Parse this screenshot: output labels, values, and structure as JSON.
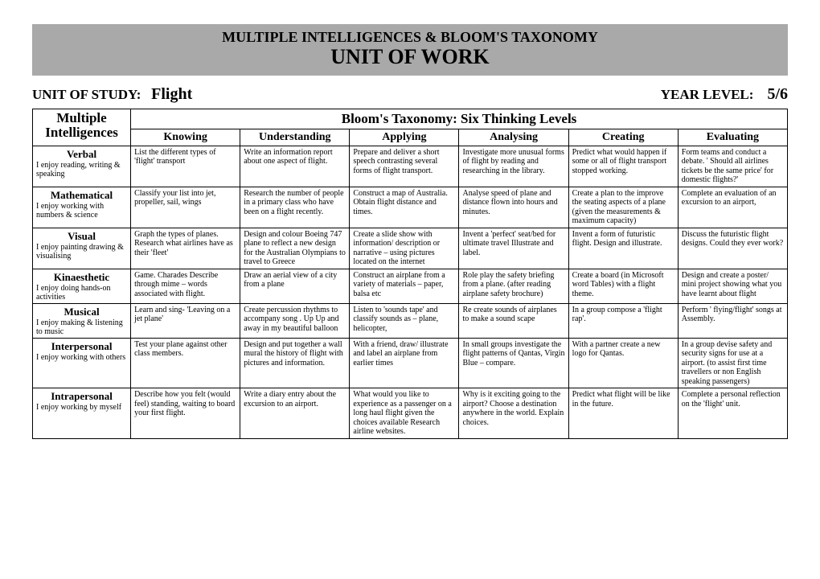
{
  "banner": {
    "subtitle": "MULTIPLE INTELLIGENCES & BLOOM'S TAXONOMY",
    "title": "UNIT OF WORK"
  },
  "meta": {
    "study_label": "UNIT OF STUDY:",
    "study_value": "Flight",
    "year_label": "YEAR LEVEL:",
    "year_value": "5/6"
  },
  "headers": {
    "mi": "Multiple Intelligences",
    "bloom": "Bloom's Taxonomy: Six Thinking Levels",
    "levels": [
      "Knowing",
      "Understanding",
      "Applying",
      "Analysing",
      "Creating",
      "Evaluating"
    ]
  },
  "rows": [
    {
      "name": "Verbal",
      "desc": "I enjoy reading, writing & speaking",
      "cells": [
        "List the different types of 'flight' transport",
        "Write an information report about one aspect of flight.",
        "Prepare and deliver a short speech contrasting several forms of flight transport.",
        "Investigate more unusual forms of flight by reading and researching in the library.",
        "Predict what would happen if some or all of flight transport stopped working.",
        "Form teams and conduct a debate. ' Should all airlines tickets be the same price' for domestic flights?'"
      ]
    },
    {
      "name": "Mathematical",
      "desc": "I enjoy working with numbers & science",
      "cells": [
        "Classify your list into jet, propeller, sail, wings",
        "Research the number of people in a primary class who have been on a flight recently.",
        "Construct a map of Australia. Obtain flight distance and times.",
        "Analyse speed of plane and distance flown into hours and minutes.",
        "Create a plan to the improve the seating aspects of a plane (given the measurements & maximum capacity)",
        "Complete an evaluation of an excursion to an airport,"
      ]
    },
    {
      "name": "Visual",
      "desc": "I enjoy painting  drawing & visualising",
      "cells": [
        "Graph the types of planes. Research what airlines have as their 'fleet'",
        "Design and colour Boeing 747 plane to reflect a new design for the Australian Olympians to travel to Greece",
        "Create a slide show with information/ description or narrative – using pictures located on the internet",
        "Invent a 'perfect' seat/bed for ultimate travel Illustrate and label.",
        "Invent a form of futuristic flight.\nDesign and illustrate.",
        "Discuss the futuristic flight designs. Could they ever work?"
      ]
    },
    {
      "name": "Kinaesthetic",
      "desc": "I enjoy doing hands-on activities",
      "cells": [
        "Game. Charades Describe through mime – words associated with flight.",
        "Draw an aerial view of a city from a plane",
        "Construct an airplane from a variety of materials – paper, balsa etc",
        "Role play the safety briefing from a plane. (after reading airplane safety brochure)",
        "Create a board (in Microsoft word Tables) with a flight theme.",
        "Design and create a poster/ mini project showing what you have learnt about flight"
      ]
    },
    {
      "name": "Musical",
      "desc": "I enjoy making & listening to music",
      "cells": [
        "Learn and sing- 'Leaving on a jet plane'",
        "Create percussion rhythms to accompany song . Up Up and away in my beautiful balloon",
        "Listen to 'sounds tape' and classify sounds as – plane, helicopter,",
        "Re create sounds of airplanes to make a sound scape",
        "In a group compose a 'flight rap'.",
        "Perform ' flying/flight' songs at Assembly."
      ]
    },
    {
      "name": "Interpersonal",
      "desc": "I enjoy working with others",
      "cells": [
        "Test your plane against other class members.",
        "Design and put together a wall mural the history of flight with  pictures and information.",
        "With a friend, draw/ illustrate and label an airplane from earlier times",
        "In small groups investigate the flight patterns of Qantas, Virgin Blue – compare.",
        "With a partner create a new logo for Qantas.",
        "In a group devise safety and security signs for use at a airport.  (to assist first time travellers or non English speaking passengers)"
      ]
    },
    {
      "name": "Intrapersonal",
      "desc": "I enjoy working by myself",
      "cells": [
        "Describe how you felt (would feel) standing, waiting to board your first flight.",
        "Write a diary entry about the excursion to an airport.",
        "What would you like to experience as a passenger on a long haul flight given the choices available Research airline websites.",
        "Why is it exciting going to the airport? Choose a destination anywhere in the world. Explain choices.",
        "Predict what flight will be like in the future.",
        "Complete a personal reflection on the 'flight' unit."
      ]
    }
  ]
}
